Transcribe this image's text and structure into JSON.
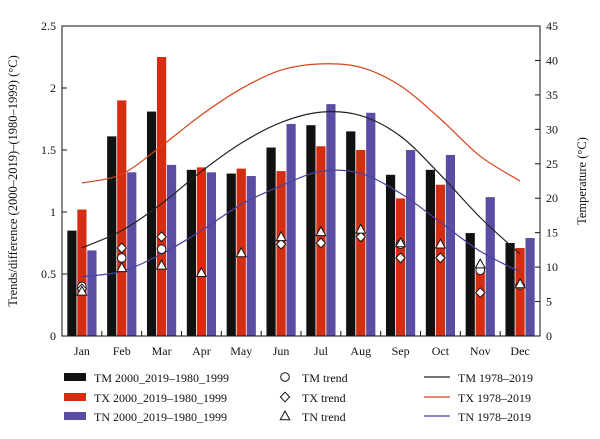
{
  "chart_data": {
    "type": "bar",
    "categories": [
      "Jan",
      "Feb",
      "Mar",
      "Apr",
      "May",
      "Jun",
      "Jul",
      "Aug",
      "Sep",
      "Oct",
      "Nov",
      "Dec"
    ],
    "ylabel_left": "Trends/difference (2000–2019)–(1980–1999) (°C)",
    "ylabel_right": "Temperature (°C)",
    "ylim_left": [
      0,
      2.5
    ],
    "ylim_right": [
      0,
      45
    ],
    "yticks_left": [
      "0",
      "0.5",
      "1",
      "1.5",
      "2",
      "2.5"
    ],
    "yticks_right": [
      "0",
      "5",
      "10",
      "15",
      "20",
      "25",
      "30",
      "35",
      "40",
      "45"
    ],
    "bar_series": [
      {
        "name": "TM 2000_2019–1980_1999",
        "color": "#111111",
        "values": [
          0.85,
          1.61,
          1.81,
          1.34,
          1.31,
          1.52,
          1.7,
          1.65,
          1.3,
          1.34,
          0.83,
          0.75
        ]
      },
      {
        "name": "TX 2000_2019–1980_1999",
        "color": "#d42e12",
        "values": [
          1.02,
          1.9,
          2.25,
          1.36,
          1.35,
          1.33,
          1.53,
          1.5,
          1.11,
          1.22,
          0.53,
          0.71
        ]
      },
      {
        "name": "TN 2000_2019–1980_1999",
        "color": "#5a4ea4",
        "values": [
          0.69,
          1.32,
          1.38,
          1.32,
          1.29,
          1.71,
          1.87,
          1.8,
          1.5,
          1.46,
          1.12,
          0.79
        ]
      }
    ],
    "trend_series": [
      {
        "name": "TM trend",
        "marker": "circle",
        "values": [
          0.4,
          0.63,
          0.7,
          null,
          null,
          null,
          null,
          null,
          0.74,
          null,
          0.53,
          null
        ]
      },
      {
        "name": "TX trend",
        "marker": "diamond",
        "values": [
          0.38,
          0.71,
          0.8,
          null,
          null,
          0.74,
          0.75,
          0.8,
          0.63,
          0.63,
          0.35,
          0.41
        ]
      },
      {
        "name": "TN trend",
        "marker": "triangle",
        "values": [
          0.36,
          0.55,
          0.57,
          0.51,
          0.67,
          0.8,
          0.84,
          0.86,
          0.75,
          0.74,
          0.58,
          0.42
        ]
      }
    ],
    "line_series": [
      {
        "name": "TM 1978–2019",
        "color": "#222222",
        "values": [
          12.8,
          15.3,
          19.2,
          23.9,
          28.0,
          31.0,
          32.5,
          32.0,
          29.0,
          23.4,
          17.2,
          11.9
        ]
      },
      {
        "name": "TX 1978–2019",
        "color": "#d4451a",
        "values": [
          22.2,
          23.5,
          27.6,
          32.1,
          35.9,
          38.6,
          39.5,
          39.0,
          36.3,
          31.5,
          26.1,
          22.5
        ]
      },
      {
        "name": "TN 1978–2019",
        "color": "#4a40a0",
        "values": [
          8.6,
          9.4,
          11.9,
          15.3,
          19.1,
          21.8,
          23.9,
          23.6,
          20.7,
          16.5,
          12.3,
          9.3
        ]
      }
    ]
  }
}
